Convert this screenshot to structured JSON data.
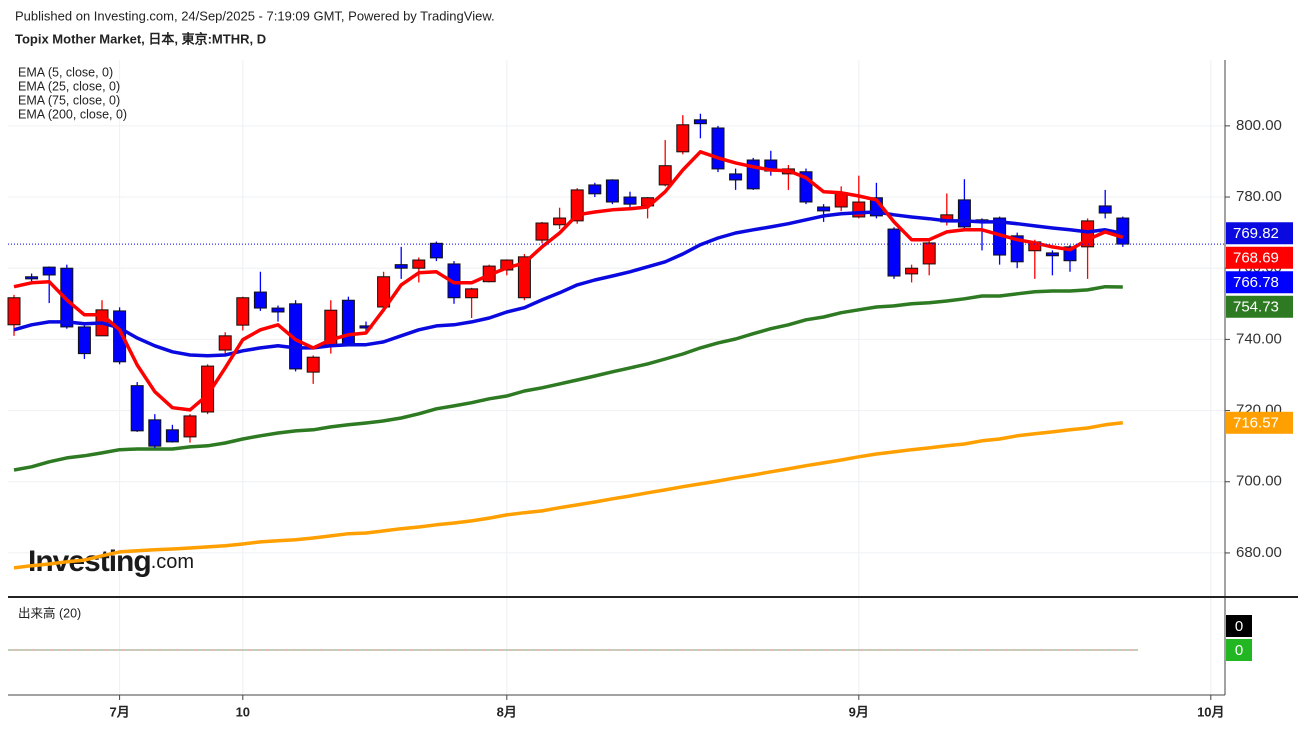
{
  "chart_data": {
    "type": "candlestick",
    "subtitle": "Published on Investing.com, 24/Sep/2025 - 7:19:09 GMT, Powered by TradingView.",
    "title": "Topix Mother Market, 日本, 東京:MTHR, D",
    "watermark": [
      "Investing",
      ".com"
    ],
    "categories": [
      null,
      null,
      null,
      null,
      null,
      null,
      "7月",
      null,
      null,
      null,
      null,
      null,
      null,
      "10",
      null,
      null,
      null,
      null,
      null,
      null,
      null,
      null,
      null,
      null,
      null,
      null,
      null,
      null,
      "8月",
      null,
      null,
      null,
      null,
      null,
      null,
      null,
      null,
      null,
      null,
      null,
      null,
      null,
      null,
      null,
      null,
      null,
      null,
      null,
      "9月",
      null,
      null,
      null,
      null,
      null,
      null,
      null,
      null,
      null,
      null,
      null,
      null,
      null,
      null,
      null,
      null,
      null,
      null,
      null,
      "10月"
    ],
    "open": [
      744.1,
      757.6,
      760.3,
      760,
      743.5,
      741,
      748,
      727,
      717.4,
      714.6,
      712.6,
      719.6,
      737,
      744,
      753.3,
      748.8,
      750,
      730.8,
      738.4,
      751,
      743.8,
      749.1,
      761,
      760,
      767,
      761.2,
      751.7,
      756.2,
      759.5,
      751.7,
      767.9,
      772.2,
      773.3,
      783.4,
      784.8,
      780,
      777.5,
      783.4,
      792.7,
      801.7,
      799.4,
      786.5,
      790.4,
      790.4,
      786.5,
      787.1,
      777.2,
      777.2,
      774.4,
      779.8,
      771,
      758.4,
      761.2,
      773,
      779.2,
      773.6,
      774.1,
      769.1,
      764.9,
      764.3,
      766,
      766,
      777.5,
      774.1,
      null,
      null,
      null,
      null,
      null
    ],
    "high": [
      752.5,
      758.5,
      760.5,
      761,
      744,
      751,
      749,
      728,
      719,
      716,
      719,
      733,
      742,
      752,
      759,
      749.5,
      751,
      735.5,
      751,
      752,
      745,
      759,
      766,
      763,
      767.5,
      762,
      754.5,
      761,
      762.5,
      764,
      773,
      777,
      782.5,
      784,
      785,
      781.5,
      780,
      796,
      803,
      803.4,
      800,
      788,
      791,
      793,
      789,
      788,
      778,
      783,
      786,
      784,
      771.5,
      761,
      767.5,
      781,
      785,
      774,
      774.5,
      770,
      768,
      765,
      766.5,
      774,
      782,
      774.5,
      null,
      null,
      null,
      null,
      null
    ],
    "low": [
      741,
      756,
      750.2,
      743,
      734.5,
      741,
      733,
      714,
      709.5,
      711,
      711,
      719,
      736,
      742.5,
      748,
      745,
      731,
      727.5,
      736,
      738,
      742,
      748,
      757,
      756,
      762,
      750,
      746,
      756,
      758,
      751,
      767,
      771,
      772.5,
      780,
      778,
      777,
      774,
      783,
      792,
      796.5,
      787,
      782,
      782,
      786,
      782,
      778,
      773,
      776,
      774,
      774,
      757,
      756,
      758,
      772,
      771,
      765,
      761,
      760,
      757,
      758,
      759,
      757,
      774,
      766,
      null,
      null,
      null,
      null,
      null
    ],
    "close": [
      751.7,
      757.0,
      758.1,
      743.5,
      736,
      748.3,
      733.7,
      714.3,
      710,
      711.2,
      718.5,
      732.5,
      741,
      751.7,
      748.8,
      747.7,
      731.7,
      735,
      748.2,
      738.4,
      743.2,
      757.6,
      760,
      762.3,
      762.9,
      751.7,
      754.2,
      760.6,
      762.3,
      763.2,
      772.7,
      774.1,
      782,
      780.9,
      778.6,
      778,
      779.8,
      788.8,
      800.3,
      800.6,
      787.9,
      784.8,
      782.3,
      787.3,
      787.9,
      778.6,
      776.1,
      781.2,
      778.6,
      774.7,
      757.8,
      760,
      767.1,
      775,
      771.6,
      773,
      763.7,
      761.8,
      767.4,
      763.5,
      762.1,
      773.3,
      775.5,
      766.78,
      null,
      null,
      null,
      null,
      null
    ],
    "up_color": "#ff0000",
    "down_color": "#0000ff",
    "series": [
      {
        "name": "EMA (5, close, 0)",
        "color": "#ff0000",
        "values": [
          754.8,
          755.9,
          756.2,
          751.1,
          746.9,
          746.9,
          742.7,
          732.8,
          725.3,
          720.8,
          720.2,
          724.4,
          732.0,
          739.9,
          742.7,
          744.1,
          739.9,
          737.6,
          739.9,
          741.3,
          741.8,
          748.3,
          755.3,
          758.7,
          759.0,
          755.9,
          755.9,
          758.1,
          760.1,
          761.5,
          766.0,
          769.9,
          775.0,
          775.8,
          776.4,
          776.7,
          777.2,
          781.5,
          787.6,
          792.7,
          791.0,
          789.6,
          788.5,
          787.6,
          787.4,
          785.4,
          781.5,
          781.2,
          780.3,
          779.2,
          773.0,
          768.0,
          768.0,
          770.2,
          770.8,
          770.8,
          769.4,
          768.0,
          767.1,
          766.0,
          765.2,
          768.0,
          770.2,
          768.69,
          null,
          null,
          null,
          null,
          null
        ]
      },
      {
        "name": "EMA (25, close, 0)",
        "color": "#0a0ae0",
        "values": [
          742.7,
          744.1,
          744.9,
          744.9,
          744.4,
          744.6,
          743.2,
          740.4,
          738.2,
          736.5,
          735.6,
          735.4,
          735.6,
          736.8,
          737.6,
          738.2,
          737.6,
          737.6,
          738.2,
          738.5,
          738.5,
          739.3,
          741.0,
          742.7,
          743.8,
          744.1,
          744.9,
          746.0,
          747.7,
          748.9,
          751.1,
          753.1,
          755.3,
          756.7,
          757.8,
          759.0,
          760.4,
          761.8,
          764.0,
          766.6,
          768.5,
          769.9,
          770.8,
          771.6,
          772.5,
          773.6,
          774.7,
          775.3,
          775.6,
          775.8,
          775.0,
          774.4,
          773.9,
          773.3,
          773.3,
          773.0,
          773.0,
          772.5,
          771.9,
          771.3,
          770.8,
          770.2,
          770.8,
          769.82,
          null,
          null,
          null,
          null,
          null
        ]
      },
      {
        "name": "EMA (75, close, 0)",
        "color": "#2e7a22",
        "values": [
          703.3,
          704.2,
          705.6,
          706.7,
          707.3,
          708.1,
          709.0,
          709.2,
          709.2,
          709.2,
          709.8,
          710.1,
          710.9,
          712.0,
          712.9,
          713.7,
          714.3,
          714.6,
          715.4,
          716.0,
          716.5,
          717.1,
          717.9,
          719.1,
          720.5,
          721.3,
          722.2,
          723.3,
          724.1,
          725.5,
          726.4,
          727.5,
          728.6,
          729.7,
          730.9,
          732.0,
          733.1,
          734.5,
          735.9,
          737.6,
          739.0,
          740.1,
          741.6,
          743.0,
          744.1,
          745.5,
          746.3,
          747.5,
          748.3,
          749.1,
          749.4,
          750.0,
          750.3,
          750.8,
          751.4,
          752.2,
          752.2,
          752.8,
          753.4,
          753.6,
          753.6,
          753.9,
          754.8,
          754.73,
          null,
          null,
          null,
          null,
          null
        ]
      },
      {
        "name": "EMA (200, close, 0)",
        "color": "#ff9f00",
        "values": [
          675.8,
          676.4,
          676.9,
          677.5,
          678.0,
          679.2,
          680.3,
          680.6,
          680.9,
          681.1,
          681.4,
          681.7,
          682.0,
          682.5,
          683.1,
          683.4,
          683.7,
          684.2,
          684.8,
          685.4,
          685.6,
          686.2,
          686.8,
          687.3,
          687.9,
          688.4,
          689.0,
          689.8,
          690.7,
          691.3,
          691.8,
          692.7,
          693.5,
          694.3,
          695.2,
          696.0,
          696.9,
          697.7,
          698.6,
          699.4,
          700.2,
          701.1,
          701.9,
          702.8,
          703.6,
          704.5,
          705.3,
          706.1,
          707.0,
          707.8,
          708.4,
          709.0,
          709.5,
          710.1,
          710.6,
          711.5,
          712.0,
          712.9,
          713.5,
          714.0,
          714.6,
          715.1,
          716.0,
          716.57,
          null,
          null,
          null,
          null,
          null
        ]
      }
    ],
    "ylim": [
      667.9,
      818.5
    ],
    "yticks": [
      {
        "value": 680,
        "label": "680.00"
      },
      {
        "value": 700,
        "label": "700.00"
      },
      {
        "value": 720,
        "label": "720.00"
      },
      {
        "value": 740,
        "label": "740.00"
      },
      {
        "value": 760,
        "label": "760.00"
      },
      {
        "value": 780,
        "label": "780.00"
      },
      {
        "value": 800,
        "label": "800.00"
      }
    ],
    "grid": true,
    "volume": {
      "title": "出来高 (20)",
      "value": 0,
      "ma": 0,
      "value_color": "#000000",
      "ma_color": "#22b722"
    }
  }
}
